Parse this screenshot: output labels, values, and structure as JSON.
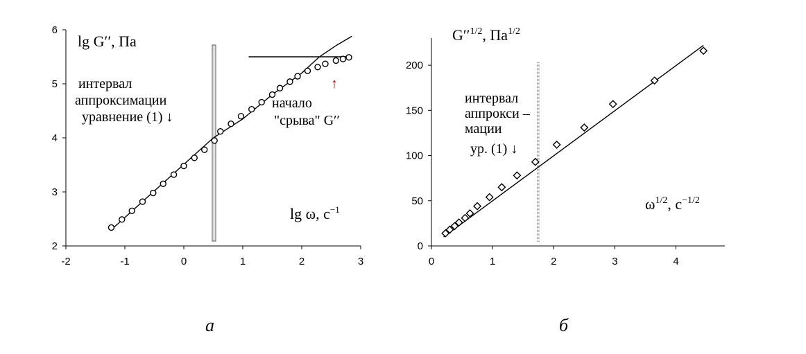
{
  "panels": {
    "a": {
      "caption": "а"
    },
    "b": {
      "caption": "б"
    }
  },
  "chart_data": [
    {
      "id": "a",
      "type": "scatter",
      "caption": "а",
      "ylabel": "lg G″, Па",
      "xlabel": "lg ω, с⁻¹",
      "xlim": [
        -2,
        3
      ],
      "ylim": [
        2,
        6
      ],
      "xticks": [
        "-2",
        "-1",
        "0",
        "1",
        "2",
        "3"
      ],
      "yticks": [
        "2",
        "3",
        "4",
        "5",
        "6"
      ],
      "grid": false,
      "series": [
        {
          "marker": "circle",
          "x": [
            -1.23,
            -1.05,
            -0.88,
            -0.7,
            -0.52,
            -0.35,
            -0.17,
            0.0,
            0.18,
            0.35,
            0.52,
            0.62,
            0.8,
            0.97,
            1.15,
            1.32,
            1.5,
            1.63,
            1.8,
            1.93,
            2.1,
            2.27,
            2.4,
            2.58,
            2.7,
            2.8
          ],
          "y": [
            2.34,
            2.49,
            2.65,
            2.82,
            2.98,
            3.15,
            3.32,
            3.48,
            3.63,
            3.78,
            3.95,
            4.12,
            4.26,
            4.4,
            4.53,
            4.66,
            4.8,
            4.92,
            5.04,
            5.14,
            5.24,
            5.31,
            5.37,
            5.43,
            5.46,
            5.49
          ]
        },
        {
          "marker": "none",
          "x": [
            -1.23,
            0.5,
            1.0,
            1.5,
            2.0,
            2.3,
            2.6,
            2.85
          ],
          "y": [
            2.3,
            4.0,
            4.35,
            4.8,
            5.2,
            5.5,
            5.72,
            5.88
          ]
        },
        {
          "marker": "none",
          "x": [
            1.1,
            2.8
          ],
          "y": [
            5.5,
            5.5
          ]
        }
      ],
      "vband_x": 0.52,
      "annotations": [
        {
          "lines": [
            "интервал",
            "аппроксимации",
            "уравнение (1) ↓"
          ]
        },
        {
          "lines": [
            "начало",
            "\"срыва\" G″",
            "↑"
          ]
        }
      ]
    },
    {
      "id": "b",
      "type": "scatter",
      "caption": "б",
      "ylabel": "G″1/2, Па1/2",
      "xlabel": "ω1/2, с−1/2",
      "xlim": [
        0,
        4.8
      ],
      "ylim": [
        0,
        230
      ],
      "xticks": [
        "0",
        "1",
        "2",
        "3",
        "4"
      ],
      "yticks": [
        "0",
        "50",
        "100",
        "150",
        "200"
      ],
      "grid": false,
      "series": [
        {
          "marker": "diamond",
          "x": [
            0.23,
            0.3,
            0.38,
            0.45,
            0.55,
            0.63,
            0.75,
            0.95,
            1.15,
            1.4,
            1.7,
            2.05,
            2.5,
            2.97,
            3.65,
            4.45
          ],
          "y": [
            14,
            18,
            22,
            26,
            31,
            36,
            44,
            54,
            65,
            78,
            93,
            112,
            131,
            157,
            183,
            216
          ]
        },
        {
          "marker": "none",
          "x": [
            0.2,
            4.45
          ],
          "y": [
            10,
            222
          ]
        }
      ],
      "vband_x": 1.7,
      "annotations": [
        {
          "lines": [
            "интервал",
            "аппрокси –",
            "мации",
            "ур. (1) ↓"
          ]
        }
      ]
    }
  ]
}
